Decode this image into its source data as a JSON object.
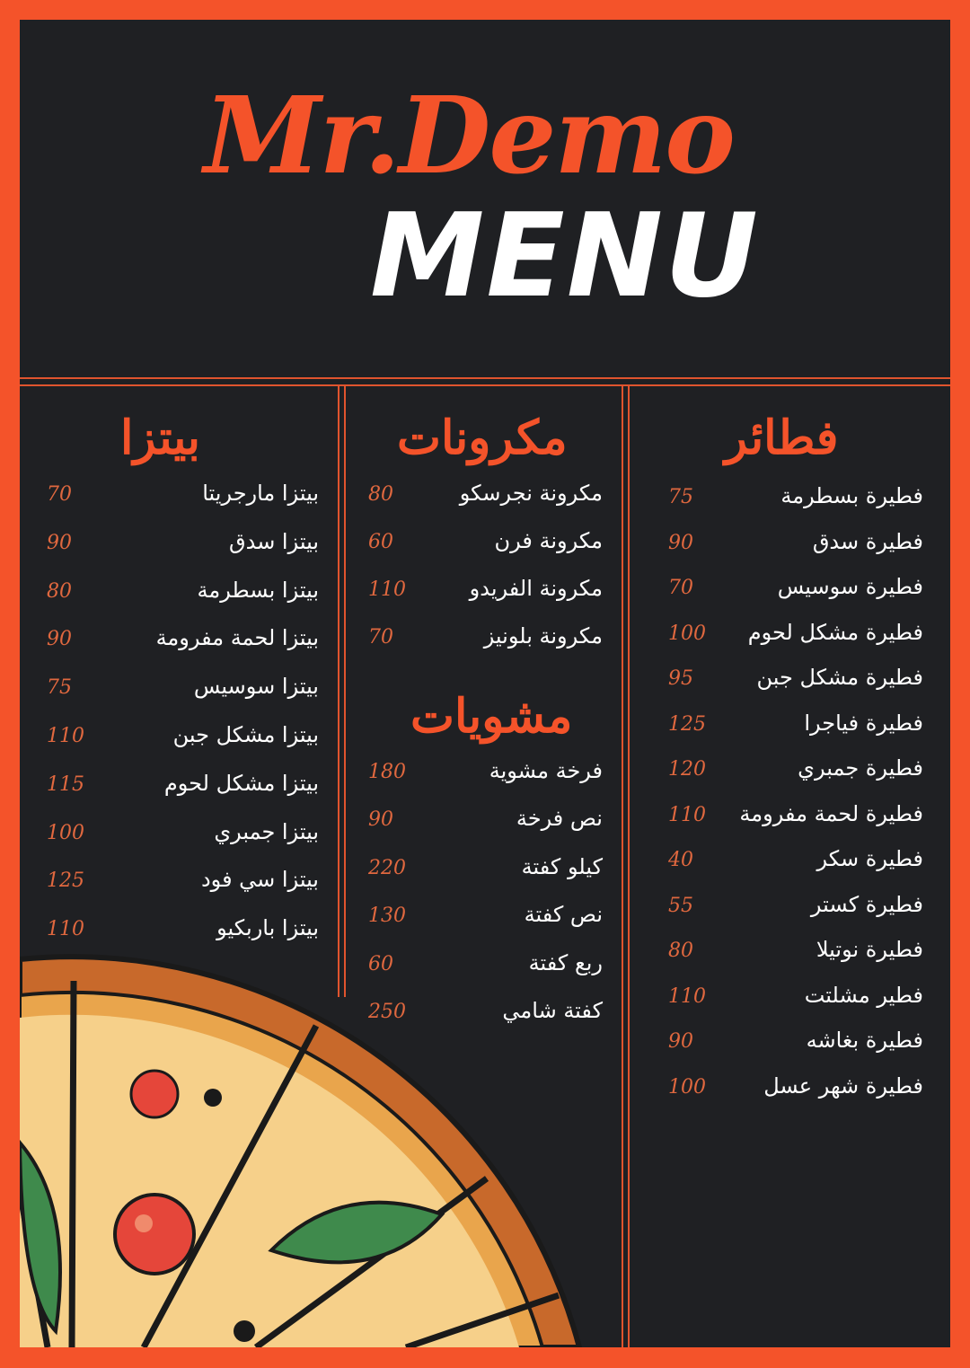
{
  "header": {
    "brand": "Mr.Demo",
    "title": "MENU"
  },
  "colors": {
    "accent": "#f4532a",
    "background": "#1f2023",
    "text": "#ffffff",
    "price": "#e0683f"
  },
  "sections": {
    "pizza": {
      "title": "بيتزا",
      "items": [
        {
          "name": "بيتزا مارجريتا",
          "price": "70"
        },
        {
          "name": "بيتزا سدق",
          "price": "90"
        },
        {
          "name": "بيتزا بسطرمة",
          "price": "80"
        },
        {
          "name": "بيتزا لحمة مفرومة",
          "price": "90"
        },
        {
          "name": "بيتزا سوسيس",
          "price": "75"
        },
        {
          "name": "بيتزا مشكل جبن",
          "price": "110"
        },
        {
          "name": "بيتزا مشكل لحوم",
          "price": "115"
        },
        {
          "name": "بيتزا جمبري",
          "price": "100"
        },
        {
          "name": "بيتزا سي فود",
          "price": "125"
        },
        {
          "name": "بيتزا باربكيو",
          "price": "110"
        }
      ]
    },
    "pasta": {
      "title": "مكرونات",
      "items": [
        {
          "name": "مكرونة نجرسكو",
          "price": "80"
        },
        {
          "name": "مكرونة فرن",
          "price": "60"
        },
        {
          "name": "مكرونة الفريدو",
          "price": "110"
        },
        {
          "name": "مكرونة بلونيز",
          "price": "70"
        }
      ]
    },
    "grills": {
      "title": "مشويات",
      "items": [
        {
          "name": "فرخة مشوية",
          "price": "180"
        },
        {
          "name": "نص فرخة",
          "price": "90"
        },
        {
          "name": "كيلو كفتة",
          "price": "220"
        },
        {
          "name": "نص كفتة",
          "price": "130"
        },
        {
          "name": "ربع كفتة",
          "price": "60"
        },
        {
          "name": "كفتة شامي",
          "price": "250"
        }
      ]
    },
    "fatayer": {
      "title": "فطائر",
      "items": [
        {
          "name": "فطيرة بسطرمة",
          "price": "75"
        },
        {
          "name": "فطيرة سدق",
          "price": "90"
        },
        {
          "name": "فطيرة سوسيس",
          "price": "70"
        },
        {
          "name": "فطيرة مشكل لحوم",
          "price": "100"
        },
        {
          "name": "فطيرة مشكل جبن",
          "price": "95"
        },
        {
          "name": "فطيرة فياجرا",
          "price": "125"
        },
        {
          "name": "فطيرة جمبري",
          "price": "120"
        },
        {
          "name": "فطيرة لحمة مفرومة",
          "price": "110"
        },
        {
          "name": "فطيرة سكر",
          "price": "40"
        },
        {
          "name": "فطيرة كستر",
          "price": "55"
        },
        {
          "name": "فطيرة نوتيلا",
          "price": "80"
        },
        {
          "name": "فطير مشلتت",
          "price": "110"
        },
        {
          "name": "فطيرة بغاشه",
          "price": "90"
        },
        {
          "name": "فطيرة شهر عسل",
          "price": "100"
        }
      ]
    }
  }
}
